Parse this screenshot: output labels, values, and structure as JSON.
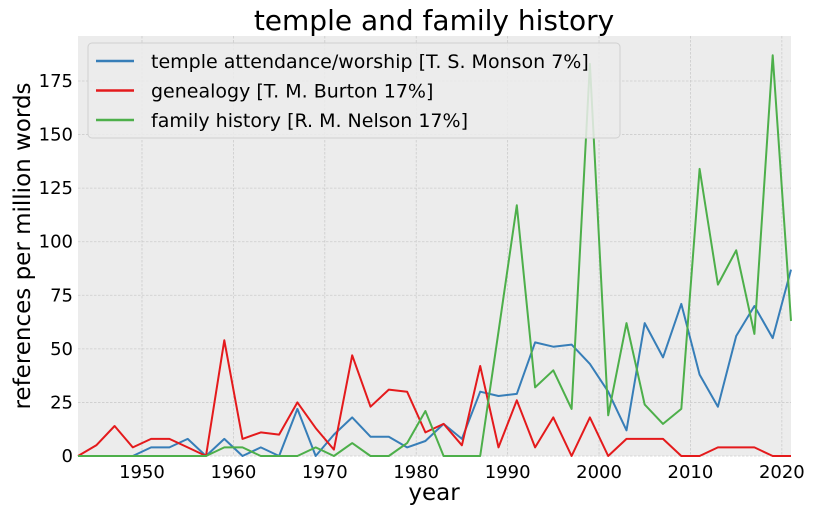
{
  "chart_data": {
    "type": "line",
    "title": "temple and family history",
    "xlabel": "year",
    "ylabel": "references per million words",
    "xlim": [
      1943,
      2021
    ],
    "ylim": [
      0,
      196
    ],
    "xticks": [
      1950,
      1960,
      1970,
      1980,
      1990,
      2000,
      2010,
      2020
    ],
    "yticks": [
      0,
      25,
      50,
      75,
      100,
      125,
      150,
      175
    ],
    "grid": true,
    "legend_position": "top-left",
    "background": "#ececec",
    "series": [
      {
        "name": "temple attendance/worship [T. S. Monson 7%]",
        "color": "#377eb8",
        "x": [
          1943,
          1945,
          1947,
          1949,
          1951,
          1953,
          1955,
          1957,
          1959,
          1961,
          1963,
          1965,
          1967,
          1969,
          1971,
          1973,
          1975,
          1977,
          1979,
          1981,
          1983,
          1985,
          1987,
          1989,
          1991,
          1993,
          1995,
          1997,
          1999,
          2001,
          2003,
          2005,
          2007,
          2009,
          2011,
          2013,
          2015,
          2017,
          2019,
          2021
        ],
        "y": [
          0,
          0,
          0,
          0,
          4,
          4,
          8,
          0,
          8,
          0,
          4,
          0,
          22,
          0,
          10,
          18,
          9,
          9,
          4,
          7,
          15,
          8,
          30,
          28,
          29,
          53,
          51,
          52,
          43,
          30,
          12,
          62,
          46,
          71,
          38,
          23,
          56,
          70,
          55,
          87
        ]
      },
      {
        "name": "genealogy [T. M. Burton 17%]",
        "color": "#e41a1c",
        "x": [
          1943,
          1945,
          1947,
          1949,
          1951,
          1953,
          1955,
          1957,
          1959,
          1961,
          1963,
          1965,
          1967,
          1969,
          1971,
          1973,
          1975,
          1977,
          1979,
          1981,
          1983,
          1985,
          1987,
          1989,
          1991,
          1993,
          1995,
          1997,
          1999,
          2001,
          2003,
          2005,
          2007,
          2009,
          2011,
          2013,
          2015,
          2017,
          2019,
          2021
        ],
        "y": [
          0,
          5,
          14,
          4,
          8,
          8,
          4,
          0,
          54,
          8,
          11,
          10,
          25,
          13,
          3,
          47,
          23,
          31,
          30,
          11,
          15,
          5,
          42,
          4,
          26,
          4,
          18,
          0,
          18,
          0,
          8,
          8,
          8,
          0,
          0,
          4,
          4,
          4,
          0,
          0
        ]
      },
      {
        "name": "family history [R. M. Nelson 17%]",
        "color": "#4daf4a",
        "x": [
          1943,
          1945,
          1947,
          1949,
          1951,
          1953,
          1955,
          1957,
          1959,
          1961,
          1963,
          1965,
          1967,
          1969,
          1971,
          1973,
          1975,
          1977,
          1979,
          1981,
          1983,
          1985,
          1987,
          1989,
          1991,
          1993,
          1995,
          1997,
          1999,
          2001,
          2003,
          2005,
          2007,
          2009,
          2011,
          2013,
          2015,
          2017,
          2019,
          2021
        ],
        "y": [
          0,
          0,
          0,
          0,
          0,
          0,
          0,
          0,
          4,
          4,
          0,
          0,
          0,
          4,
          0,
          6,
          0,
          0,
          6,
          21,
          0,
          0,
          0,
          58,
          117,
          32,
          40,
          22,
          183,
          19,
          62,
          24,
          15,
          22,
          134,
          80,
          96,
          57,
          187,
          63
        ]
      }
    ]
  }
}
